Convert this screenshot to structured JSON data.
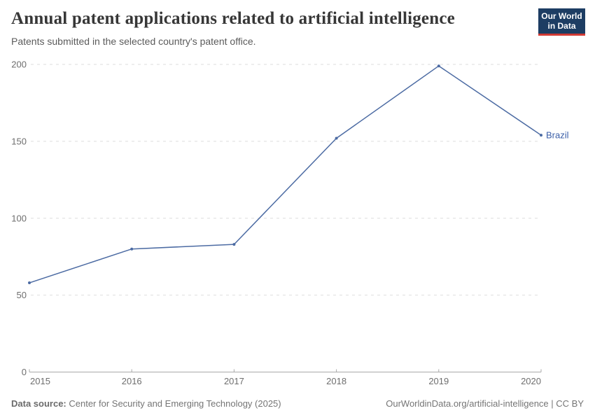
{
  "header": {
    "title": "Annual patent applications related to artificial intelligence",
    "subtitle": "Patents submitted in the selected country's patent office.",
    "logo": {
      "line1": "Our World",
      "line2": "in Data",
      "bg_color": "#1d3d63",
      "accent_color": "#d13a34"
    }
  },
  "chart_data": {
    "type": "line",
    "title": "Annual patent applications related to artificial intelligence",
    "x": [
      2015,
      2016,
      2017,
      2018,
      2019,
      2020
    ],
    "series": [
      {
        "name": "Brazil",
        "values": [
          58,
          80,
          83,
          152,
          199,
          154
        ],
        "color": "#4c6ba3"
      }
    ],
    "xlabel": "",
    "ylabel": "",
    "ylim": [
      0,
      200
    ],
    "yticks": [
      0,
      50,
      100,
      150,
      200
    ],
    "grid": "horizontal-dashed",
    "legend_position": "end-of-line-label",
    "colors": {
      "gridline": "#dedede",
      "axis": "#a9a9a9",
      "tick_label": "#6e6e6e",
      "entity_label": "#3b5fa8"
    }
  },
  "footer": {
    "source_label": "Data source:",
    "source_text": " Center for Security and Emerging Technology (2025)",
    "credit": "OurWorldinData.org/artificial-intelligence | CC BY"
  }
}
